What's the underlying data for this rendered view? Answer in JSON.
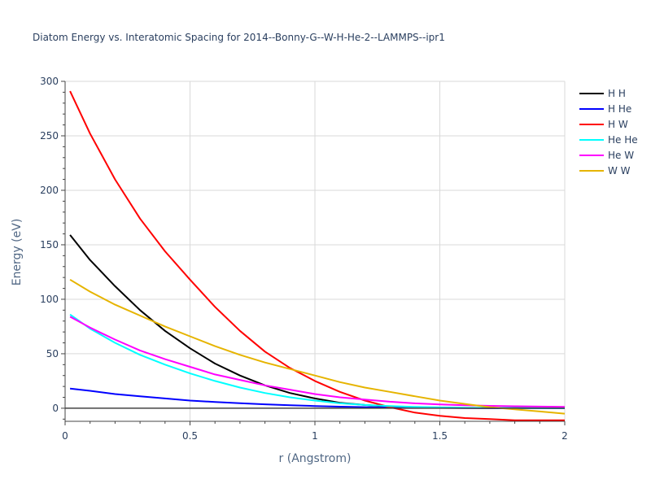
{
  "chart_data": {
    "type": "line",
    "title": "Diatom Energy vs. Interatomic Spacing for 2014--Bonny-G--W-H-He-2--LAMMPS--ipr1",
    "xlabel": "r (Angstrom)",
    "ylabel": "Energy (eV)",
    "xlim": [
      0,
      2
    ],
    "ylim": [
      -12,
      300
    ],
    "xticks": [
      0,
      0.5,
      1,
      1.5,
      2
    ],
    "xtick_labels": [
      "0",
      "0.5",
      "1",
      "1.5",
      "2"
    ],
    "yticks": [
      0,
      50,
      100,
      150,
      200,
      250,
      300
    ],
    "ytick_labels": [
      "0",
      "50",
      "100",
      "150",
      "200",
      "250",
      "300"
    ],
    "grid": true,
    "legend_position": "top-right",
    "series": [
      {
        "name": "H H",
        "color": "#000000",
        "x": [
          0.02,
          0.1,
          0.2,
          0.3,
          0.4,
          0.5,
          0.6,
          0.7,
          0.8,
          0.9,
          1.0,
          1.1,
          1.2,
          1.3,
          1.4,
          1.5,
          1.6,
          1.7,
          1.8,
          1.9,
          2.0
        ],
        "y": [
          159,
          136,
          112,
          90,
          71,
          55,
          41,
          30,
          21,
          14,
          9,
          5,
          3,
          1.5,
          1,
          0.5,
          0.3,
          0.2,
          0.1,
          0.1,
          0
        ]
      },
      {
        "name": "H He",
        "color": "#0000ff",
        "x": [
          0.02,
          0.1,
          0.2,
          0.3,
          0.4,
          0.5,
          0.6,
          0.7,
          0.8,
          0.9,
          1.0,
          1.1,
          1.2,
          1.3,
          1.4,
          1.5,
          1.6,
          1.7,
          1.8,
          1.9,
          2.0
        ],
        "y": [
          18,
          16,
          13,
          11,
          9,
          7,
          5.8,
          4.6,
          3.6,
          2.8,
          2,
          1.4,
          1,
          0.6,
          0.4,
          0.3,
          0.2,
          0.1,
          0.1,
          0.05,
          0
        ]
      },
      {
        "name": "H W",
        "color": "#ff0000",
        "x": [
          0.02,
          0.1,
          0.2,
          0.3,
          0.4,
          0.5,
          0.6,
          0.7,
          0.8,
          0.9,
          1.0,
          1.1,
          1.2,
          1.3,
          1.4,
          1.5,
          1.6,
          1.7,
          1.8,
          1.9,
          2.0
        ],
        "y": [
          291,
          252,
          210,
          174,
          144,
          118,
          93,
          71,
          52,
          37,
          25,
          15,
          7,
          1,
          -4,
          -7,
          -9,
          -10,
          -11,
          -11,
          -11
        ]
      },
      {
        "name": "He He",
        "color": "#00ffff",
        "x": [
          0.02,
          0.1,
          0.2,
          0.3,
          0.4,
          0.5,
          0.6,
          0.7,
          0.8,
          0.9,
          1.0,
          1.1,
          1.2,
          1.3,
          1.4,
          1.5,
          1.6,
          1.7,
          1.8,
          1.9,
          2.0
        ],
        "y": [
          86,
          73,
          60,
          49,
          40,
          32,
          25,
          19,
          14,
          10,
          7,
          4.5,
          3,
          2,
          1.2,
          0.8,
          0.5,
          0.3,
          0.2,
          0.1,
          0.1
        ]
      },
      {
        "name": "He W",
        "color": "#ff00ff",
        "x": [
          0.02,
          0.1,
          0.2,
          0.3,
          0.4,
          0.5,
          0.6,
          0.7,
          0.8,
          0.9,
          1.0,
          1.1,
          1.2,
          1.3,
          1.4,
          1.5,
          1.6,
          1.7,
          1.8,
          1.9,
          2.0
        ],
        "y": [
          84,
          74,
          63,
          53,
          45,
          38,
          31,
          26,
          21,
          17,
          13,
          10,
          8,
          6,
          4.5,
          3.5,
          2.8,
          2.2,
          1.8,
          1.5,
          1.2
        ]
      },
      {
        "name": "W W",
        "color": "#e6b400",
        "x": [
          0.02,
          0.1,
          0.2,
          0.3,
          0.4,
          0.5,
          0.6,
          0.7,
          0.8,
          0.9,
          1.0,
          1.1,
          1.2,
          1.3,
          1.4,
          1.5,
          1.6,
          1.7,
          1.8,
          1.9,
          2.0
        ],
        "y": [
          118,
          107,
          95,
          85,
          75,
          66,
          57,
          49,
          42,
          36,
          30,
          24,
          19,
          15,
          11,
          7,
          4,
          1,
          -1,
          -3,
          -5
        ]
      }
    ]
  }
}
